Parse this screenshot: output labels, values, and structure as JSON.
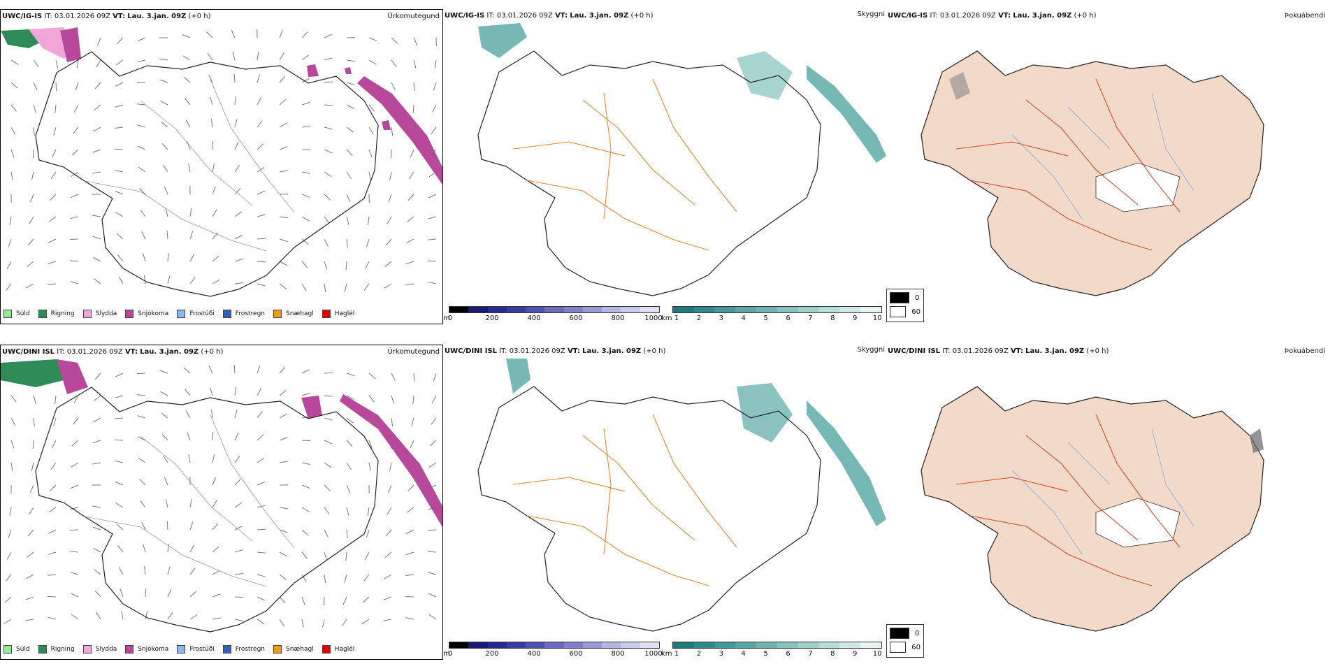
{
  "rows": [
    {
      "model": "UWC/IG-IS",
      "it_label": "IT:",
      "it_value": "03.01.2026 09Z",
      "vt_label": "VT:",
      "vt_value": "Lau. 3.jan. 09Z",
      "lead": "(+0 h)"
    },
    {
      "model": "UWC/DINI ISL",
      "it_label": "IT:",
      "it_value": "03.01.2026 09Z",
      "vt_label": "VT:",
      "vt_value": "Lau. 3.jan. 09Z",
      "lead": "(+0 h)"
    }
  ],
  "panel_titles": {
    "precip": "Úrkomutegund",
    "visibility": "Skyggni",
    "fog": "Þokuábendi"
  },
  "precip_legend": [
    {
      "label": "Súld",
      "color": "#90ee90"
    },
    {
      "label": "Rigning",
      "color": "#2e8b57"
    },
    {
      "label": "Slydda",
      "color": "#f0a6d8"
    },
    {
      "label": "Snjókoma",
      "color": "#b8489a"
    },
    {
      "label": "Frostúði",
      "color": "#87b8ee"
    },
    {
      "label": "Frostregn",
      "color": "#2f64b8"
    },
    {
      "label": "Snæhagl",
      "color": "#f39c12"
    },
    {
      "label": "Haglél",
      "color": "#e00000"
    }
  ],
  "elevation_bar": {
    "unit": "m",
    "ticks": [
      "0",
      "200",
      "400",
      "600",
      "800",
      "1000"
    ],
    "colors": [
      "#000000",
      "#1a1a6e",
      "#262a90",
      "#3a3aa0",
      "#5050b0",
      "#6a6ac0",
      "#8080cc",
      "#9a9ad6",
      "#b4b4e0",
      "#cacaea",
      "#e0e0f4"
    ]
  },
  "visibility_bar": {
    "unit": "km",
    "ticks": [
      "1",
      "2",
      "3",
      "4",
      "5",
      "6",
      "7",
      "8",
      "9",
      "10"
    ],
    "colors": [
      "#1f7a78",
      "#2f8a88",
      "#459894",
      "#5aa6a2",
      "#70b4b0",
      "#88c2be",
      "#a0d0cc",
      "#b8dcd8",
      "#d0e8e6",
      "#e8f4f2"
    ]
  },
  "fog_legend": [
    {
      "label": "0",
      "color": "#000000"
    },
    {
      "label": "60",
      "color": "#ffffff"
    }
  ],
  "colors": {
    "snow": "#b8489a",
    "rain": "#2e8b57",
    "sleet": "#f0a6d8",
    "vis_teal": "#3a9a94",
    "roads_orange": "#e8862c",
    "roads_red": "#d94a2a",
    "land_fog": "#f3d9c8",
    "rivers": "#8fa6f0"
  }
}
